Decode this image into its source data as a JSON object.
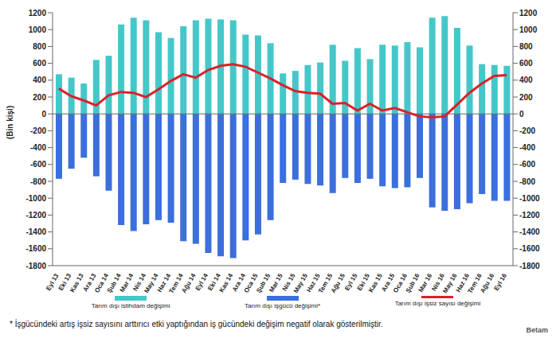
{
  "chart_data": {
    "type": "bar",
    "y_label": "(Bin kişi)",
    "note": "* İşgücündeki artış işsiz sayısını arttırıcı  etki yaptığından iş gücündeki değişim negatif olarak gösterilmiştir.",
    "logo": "Betam",
    "stacked": true,
    "grid": false,
    "legend": "bottom",
    "categories": [
      "Eyl 13",
      "Eki 13",
      "Kas 13",
      "Ara 13",
      "Oca 14",
      "Şub 14",
      "Mar 14",
      "Nis 14",
      "May 14",
      "Haz 14",
      "Tem 14",
      "Ağu 14",
      "Eyl 14",
      "Eki 14",
      "Kas 14",
      "Ara 14",
      "Oca 15",
      "Şub 15",
      "Mar 15",
      "Nis 15",
      "May 15",
      "Haz 15",
      "Tem 15",
      "Ağu 15",
      "Eyl 15",
      "Eki 15",
      "Kas 15",
      "Ara 15",
      "Oca 16",
      "Şub 16",
      "Mar 16",
      "Nis 16",
      "May 16",
      "Haz 16",
      "Tem 16",
      "Ağu 16",
      "Eyl 16"
    ],
    "series": [
      {
        "name": "Tarım dışı istihdam değişimi",
        "type": "bar",
        "color": "#45c7c9",
        "values": [
          470,
          430,
          360,
          640,
          690,
          1060,
          1140,
          1110,
          970,
          900,
          1040,
          1110,
          1130,
          1120,
          1110,
          940,
          930,
          840,
          480,
          510,
          580,
          610,
          820,
          630,
          780,
          650,
          820,
          810,
          850,
          790,
          1140,
          1160,
          1020,
          810,
          590,
          580,
          570
        ]
      },
      {
        "name": "Tarım dışı işgücü değişimi*",
        "type": "bar",
        "color": "#3b6fdc",
        "values": [
          -770,
          -650,
          -520,
          -740,
          -910,
          -1320,
          -1390,
          -1310,
          -1260,
          -1290,
          -1510,
          -1540,
          -1650,
          -1690,
          -1710,
          -1500,
          -1430,
          -1260,
          -820,
          -780,
          -830,
          -850,
          -940,
          -760,
          -820,
          -770,
          -860,
          -880,
          -870,
          -760,
          -1110,
          -1150,
          -1130,
          -1060,
          -950,
          -1030,
          -1030
        ]
      },
      {
        "name": "Tarım dışı işsiz sayısı değişimi",
        "type": "line",
        "color": "#d9222a",
        "values": [
          300,
          210,
          160,
          100,
          220,
          260,
          250,
          200,
          290,
          390,
          470,
          430,
          520,
          570,
          590,
          560,
          490,
          420,
          340,
          270,
          250,
          240,
          120,
          130,
          40,
          120,
          40,
          70,
          20,
          -30,
          -40,
          -30,
          110,
          250,
          360,
          450,
          460
        ]
      }
    ],
    "ylim": [
      -1800,
      1200
    ],
    "yticks": [
      -1800,
      -1600,
      -1400,
      -1200,
      -1000,
      -800,
      -600,
      -400,
      -200,
      0,
      200,
      400,
      600,
      800,
      1000,
      1200
    ]
  }
}
